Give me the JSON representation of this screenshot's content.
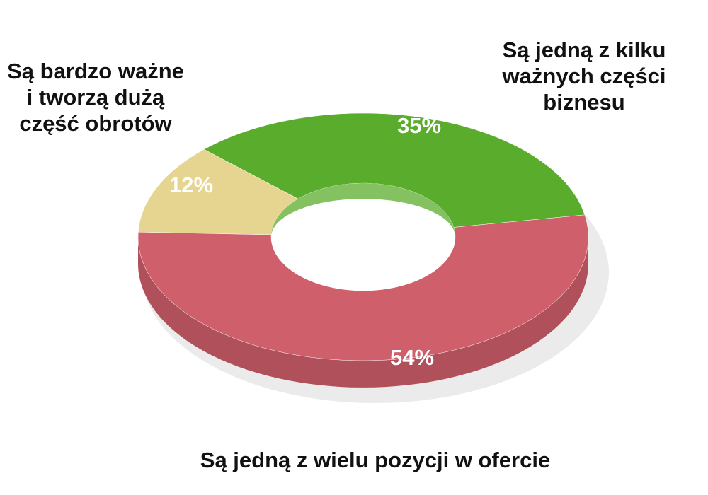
{
  "chart_data": {
    "type": "donut",
    "categories": [
      "Są jedną z kilku ważnych części biznesu",
      "Są bardzo ważne i tworzą dużą część obrotów",
      "Są jedną z wielu pozycji w ofercie"
    ],
    "values": [
      35,
      12,
      54
    ],
    "value_labels": [
      "35%",
      "12%",
      "54%"
    ],
    "colors": [
      "#5aac2c",
      "#e6d491",
      "#cf5f6b"
    ]
  }
}
